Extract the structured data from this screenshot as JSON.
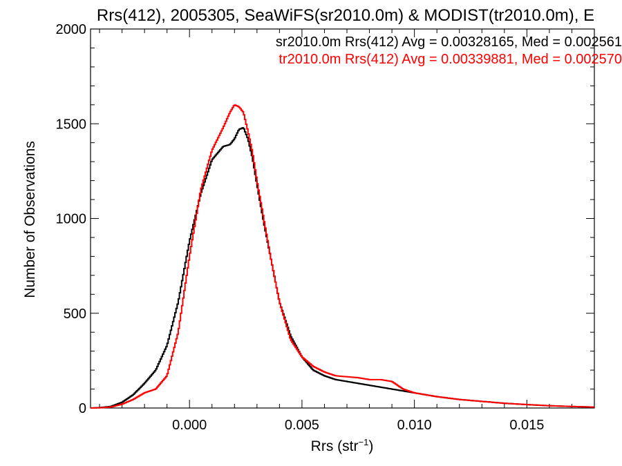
{
  "chart_data": {
    "type": "line",
    "title": "Rrs(412), 2005305, SeaWiFS(sr2010.0m) & MODIST(tr2010.0m), E",
    "xlabel": "Rrs (str",
    "xlabel_sup": "−1",
    "xlabel_close": ")",
    "ylabel": "Number of Observations",
    "xlim": [
      -0.0044,
      0.018
    ],
    "ylim": [
      0,
      2000
    ],
    "xticks": [
      0.0,
      0.005,
      0.01,
      0.015
    ],
    "xtick_labels": [
      "0.000",
      "0.005",
      "0.010",
      "0.015"
    ],
    "yticks": [
      0,
      500,
      1000,
      1500,
      2000
    ],
    "ytick_labels": [
      "0",
      "500",
      "1000",
      "1500",
      "2000"
    ],
    "grid": false,
    "legend_position": "top-right",
    "series": [
      {
        "name": "sr2010.0m Rrs(412) Avg = 0.00328165, Med = 0.002561",
        "color": "#000000",
        "x": [
          -0.0044,
          -0.004,
          -0.0035,
          -0.003,
          -0.0025,
          -0.002,
          -0.0015,
          -0.001,
          -0.0005,
          0.0,
          0.0005,
          0.001,
          0.0015,
          0.0018,
          0.002,
          0.0022,
          0.0024,
          0.0026,
          0.0028,
          0.003,
          0.0033,
          0.0036,
          0.004,
          0.0045,
          0.005,
          0.0055,
          0.006,
          0.0065,
          0.007,
          0.0075,
          0.008,
          0.0085,
          0.009,
          0.0095,
          0.01,
          0.011,
          0.012,
          0.013,
          0.014,
          0.015,
          0.016,
          0.017,
          0.018
        ],
        "y": [
          0,
          2,
          8,
          30,
          70,
          130,
          200,
          330,
          560,
          880,
          1130,
          1310,
          1380,
          1390,
          1420,
          1470,
          1480,
          1420,
          1320,
          1180,
          980,
          800,
          560,
          380,
          270,
          200,
          170,
          150,
          140,
          130,
          120,
          110,
          100,
          90,
          80,
          60,
          45,
          35,
          25,
          18,
          12,
          8,
          5
        ]
      },
      {
        "name": "tr2010.0m Rrs(412) Avg = 0.00339881, Med = 0.002570",
        "color": "#ff0000",
        "x": [
          -0.0044,
          -0.004,
          -0.0035,
          -0.003,
          -0.0025,
          -0.002,
          -0.0015,
          -0.001,
          -0.0005,
          0.0,
          0.0005,
          0.001,
          0.0015,
          0.0018,
          0.002,
          0.0022,
          0.0024,
          0.0026,
          0.0028,
          0.003,
          0.0033,
          0.0036,
          0.004,
          0.0045,
          0.005,
          0.0055,
          0.006,
          0.0065,
          0.007,
          0.0075,
          0.008,
          0.0085,
          0.009,
          0.0095,
          0.01,
          0.011,
          0.012,
          0.013,
          0.014,
          0.015,
          0.016,
          0.017,
          0.018
        ],
        "y": [
          0,
          1,
          5,
          20,
          45,
          80,
          100,
          170,
          400,
          800,
          1150,
          1360,
          1480,
          1560,
          1600,
          1590,
          1560,
          1460,
          1350,
          1200,
          1000,
          800,
          560,
          360,
          270,
          220,
          190,
          170,
          165,
          160,
          150,
          150,
          140,
          100,
          80,
          60,
          45,
          35,
          25,
          18,
          12,
          8,
          5
        ]
      }
    ]
  }
}
